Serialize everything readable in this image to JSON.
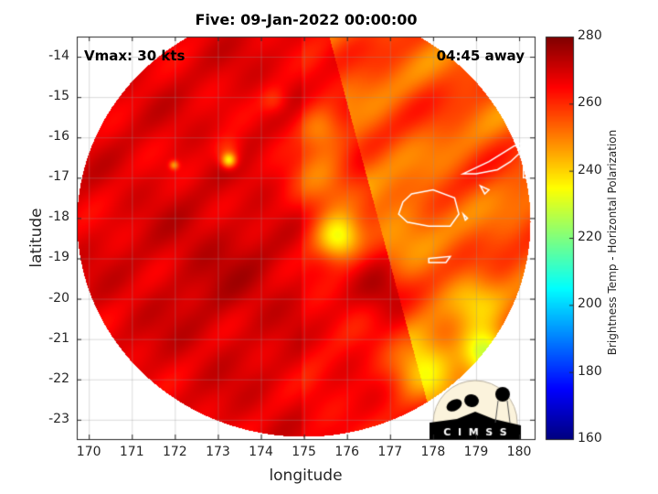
{
  "chart_data": {
    "type": "heatmap",
    "title": "Five: 09-Jan-2022 00:00:00",
    "xlabel": "longitude",
    "ylabel": "latitude",
    "xlim": [
      169.72,
      180.36
    ],
    "ylim": [
      -23.48,
      -13.5
    ],
    "xticks": [
      170,
      171,
      172,
      173,
      174,
      175,
      176,
      177,
      178,
      179,
      180
    ],
    "yticks": [
      -14,
      -15,
      -16,
      -17,
      -18,
      -19,
      -20,
      -21,
      -22,
      -23
    ],
    "grid": true,
    "annotations": {
      "left": "Vmax: 30 kts",
      "right": "04:45 away"
    },
    "colorbar": {
      "label": "Brightness Temp - Horizontal Polarization",
      "colormap": "jet",
      "range": [
        160,
        280
      ],
      "ticks": [
        160,
        180,
        200,
        220,
        240,
        260,
        280
      ]
    },
    "logo": "CIMSS",
    "coastline_color": "#ffffff"
  }
}
